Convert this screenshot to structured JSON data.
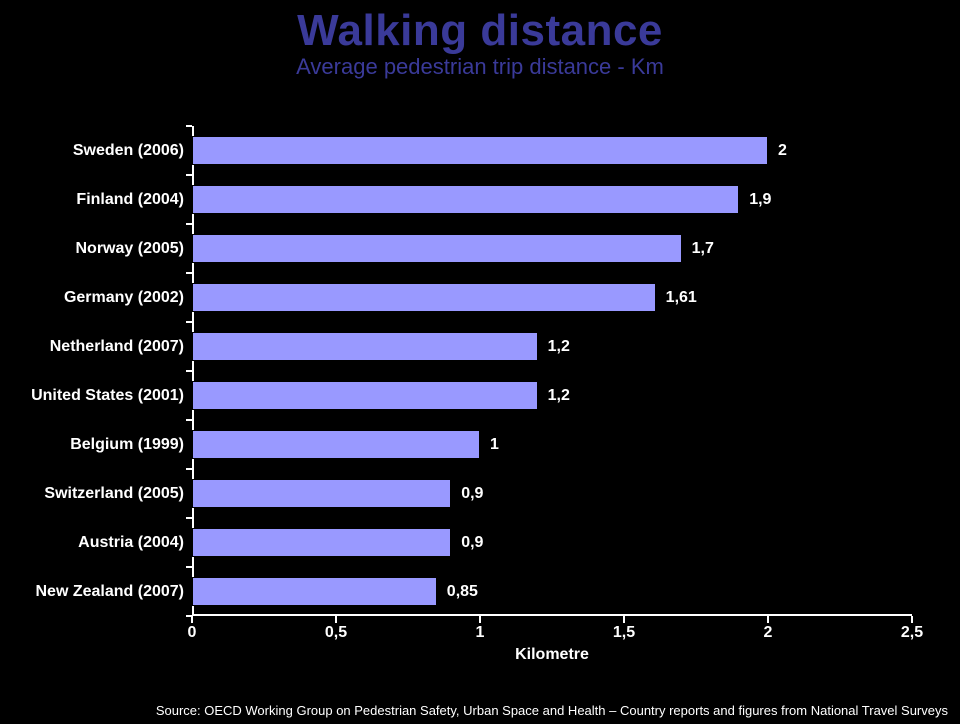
{
  "title": "Walking distance",
  "subtitle": "Average pedestrian trip distance - Km",
  "chart": {
    "type": "bar-horizontal",
    "background_color": "#000000",
    "bar_color": "#9999ff",
    "bar_border_color": "#000000",
    "axis_color": "#ffffff",
    "text_color": "#ffffff",
    "title_color": "#3a3a99",
    "title_fontsize": 44,
    "subtitle_fontsize": 22,
    "label_fontsize": 16,
    "tick_fontsize": 16,
    "bar_height_ratio": 0.59,
    "xlim": [
      0,
      2.5
    ],
    "x_ticks": [
      0,
      0.5,
      1,
      1.5,
      2,
      2.5
    ],
    "x_tick_labels": [
      "0",
      "0,5",
      "1",
      "1,5",
      "2",
      "2,5"
    ],
    "x_axis_title": "Kilometre",
    "categories": [
      "Sweden (2006)",
      "Finland (2004)",
      "Norway (2005)",
      "Germany (2002)",
      "Netherland (2007)",
      "United States  (2001)",
      "Belgium (1999)",
      "Switzerland (2005)",
      "Austria (2004)",
      "New Zealand (2007)"
    ],
    "values": [
      2,
      1.9,
      1.7,
      1.61,
      1.2,
      1.2,
      1,
      0.9,
      0.9,
      0.85
    ],
    "value_labels": [
      "2",
      "1,9",
      "1,7",
      "1,61",
      "1,2",
      "1,2",
      "1",
      "0,9",
      "0,9",
      "0,85"
    ]
  },
  "source": "Source: OECD Working Group on Pedestrian Safety, Urban Space and Health – Country reports and figures from National Travel Surveys"
}
